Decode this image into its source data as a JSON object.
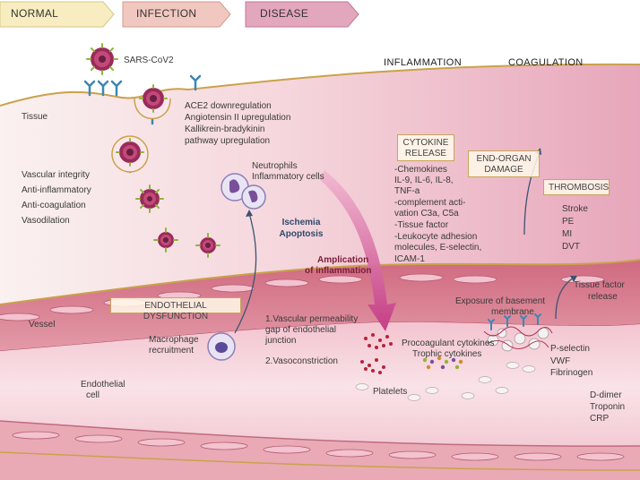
{
  "stages": {
    "normal": "NORMAL",
    "infection": "INFECTION",
    "disease": "DISEASE"
  },
  "headers": {
    "inflammation": "INFLAMMATION",
    "coagulation": "COAGULATION"
  },
  "labels": {
    "virus": "SARS-CoV2",
    "tissue": "Tissue",
    "ace2": [
      "ACE2 downregulation",
      "Angiotensin II upregulation",
      "Kallikrein-bradykinin",
      "pathway upregulation"
    ],
    "normal_funcs": [
      "Vascular integrity",
      "Anti-inflammatory",
      "Anti-coagulation",
      "Vasodilation"
    ],
    "neutrophils": [
      "Neutrophils",
      "Inflammatory cells"
    ],
    "ischemia": [
      "Ischemia",
      "Apoptosis"
    ],
    "amplification": [
      "Amplication",
      "of inflammation"
    ],
    "cytokine_release": [
      "CYTOKINE",
      "RELEASE"
    ],
    "cytokines": [
      "-Chemokines",
      "IL-9, IL-6, IL-8,",
      "TNF-a",
      "-complement acti-",
      "vation C3a, C5a",
      "-Tissue factor",
      "-Leukocyte adhesion",
      "molecules, E-selectin,",
      "ICAM-1"
    ],
    "end_organ": [
      "END-ORGAN",
      "DAMAGE"
    ],
    "thrombosis": "THROMBOSIS",
    "outcomes": [
      "Stroke",
      "PE",
      "MI",
      "DVT"
    ],
    "basement": [
      "Exposure of basement",
      "membrane"
    ],
    "tissue_factor": [
      "Tissue factor",
      "release"
    ],
    "endothelial_dysfunction": "ENDOTHELIAL DYSFUNCTION",
    "vessel": "Vessel",
    "macrophage": [
      "Macrophage",
      "recruitment"
    ],
    "vascular": [
      "1.Vascular permeability",
      "gap of endothelial",
      "junction"
    ],
    "vasoconstriction": "2.Vasoconstriction",
    "procoagulant": [
      "Procoagulant cytokines",
      "Trophic cytokines"
    ],
    "platelets": "Platelets",
    "endothelial_cell": [
      "Endothelial",
      "cell"
    ],
    "clotting": [
      "P-selectin",
      "VWF",
      "Fibrinogen"
    ],
    "markers": [
      "D-dimer",
      "Troponin",
      "CRP"
    ]
  },
  "colors": {
    "normal_stage": "#f7edc0",
    "infection_stage": "#f1c8c0",
    "disease_stage": "#e3a7bd",
    "tissue": "#f4d3da",
    "vessel_wall": "#d98a9a",
    "lumen": "#f8e0e4",
    "virus": "#9b2a5a",
    "spike": "#8fb53a",
    "receptor": "#3d86b5",
    "arrow": "#c2508c",
    "gold": "#c9a24a"
  }
}
